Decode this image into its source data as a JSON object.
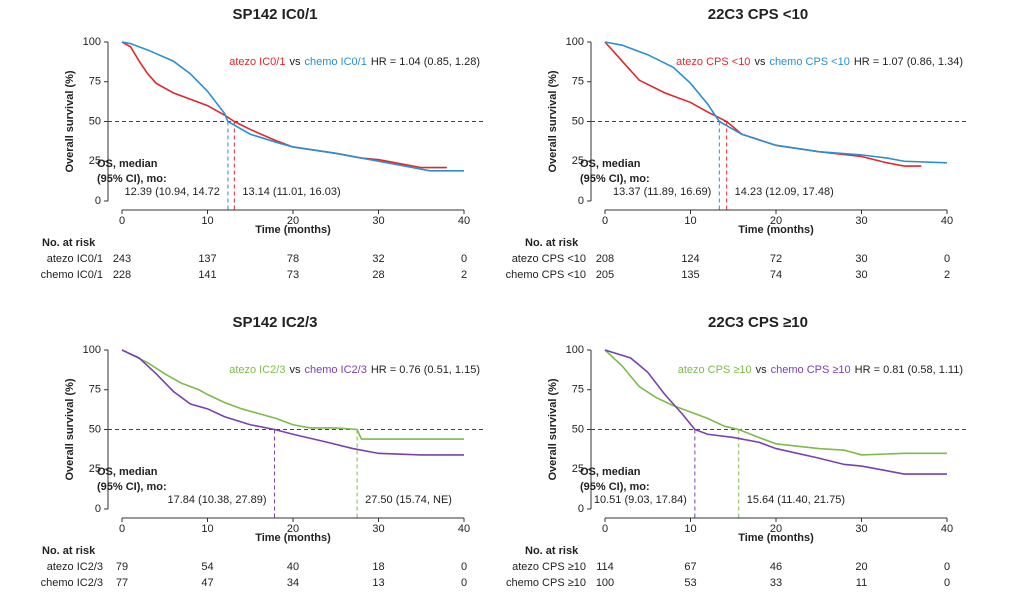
{
  "chart_data": [
    {
      "type": "line",
      "title": "SP142 IC0/1",
      "xlabel": "Time (months)",
      "ylabel": "Overall survival (%)",
      "xlim": [
        0,
        40
      ],
      "ylim": [
        0,
        100
      ],
      "xticks": [
        0,
        10,
        20,
        30,
        40
      ],
      "yticks": [
        0,
        25,
        50,
        75,
        100
      ],
      "hline": 50,
      "vs": "vs",
      "hr": "HR = 1.04 (0.85, 1.28)",
      "median_heading": [
        "OS, median",
        "(95% CI), mo:"
      ],
      "risk_heading": "No. at risk",
      "series": [
        {
          "name": "atezo IC0/1",
          "color": "#e3262b",
          "x": [
            0,
            1,
            2,
            3,
            4,
            6,
            8,
            10,
            12,
            13.14,
            15,
            18,
            20,
            25,
            28,
            30,
            33,
            35,
            38
          ],
          "values": [
            100,
            97,
            88,
            80,
            74,
            68,
            64,
            60,
            54,
            50,
            45,
            38,
            34,
            30,
            27,
            26,
            23,
            21,
            21
          ],
          "median": 13.14,
          "median_label": "13.14 (11.01, 16.03)",
          "risk": [
            243,
            137,
            78,
            32,
            0
          ]
        },
        {
          "name": "chemo IC0/1",
          "color": "#2b8fd0",
          "x": [
            0,
            1,
            3,
            6,
            8,
            10,
            12,
            12.39,
            15,
            18,
            20,
            25,
            28,
            30,
            33,
            36,
            40
          ],
          "values": [
            100,
            99,
            95,
            88,
            80,
            69,
            55,
            50,
            42,
            37,
            34,
            30,
            27,
            25,
            22,
            19,
            19
          ],
          "median": 12.39,
          "median_label": "12.39 (10.94, 14.72",
          "risk": [
            228,
            141,
            73,
            28,
            2
          ]
        }
      ]
    },
    {
      "type": "line",
      "title": "22C3 CPS <10",
      "xlabel": "Time (months)",
      "ylabel": "Overall survival (%)",
      "xlim": [
        0,
        40
      ],
      "ylim": [
        0,
        100
      ],
      "xticks": [
        0,
        10,
        20,
        30,
        40
      ],
      "yticks": [
        0,
        25,
        50,
        75,
        100
      ],
      "hline": 50,
      "vs": "vs",
      "hr": "HR = 1.07 (0.86, 1.34)",
      "median_heading": [
        "OS, median",
        "(95% CI), mo:"
      ],
      "risk_heading": "No. at risk",
      "series": [
        {
          "name": "atezo CPS <10",
          "color": "#e3262b",
          "x": [
            0,
            2,
            4,
            7,
            10,
            12,
            14.23,
            16,
            20,
            25,
            30,
            33,
            35,
            37
          ],
          "values": [
            100,
            88,
            76,
            68,
            62,
            56,
            50,
            42,
            35,
            31,
            28,
            24,
            22,
            22
          ],
          "median": 14.23,
          "median_label": "14.23 (12.09, 17.48)",
          "risk": [
            208,
            124,
            72,
            30,
            0
          ]
        },
        {
          "name": "chemo CPS <10",
          "color": "#2b8fd0",
          "x": [
            0,
            2,
            5,
            8,
            10,
            12,
            13.37,
            16,
            20,
            25,
            30,
            33,
            35,
            40
          ],
          "values": [
            100,
            98,
            92,
            84,
            74,
            61,
            50,
            42,
            35,
            31,
            29,
            27,
            25,
            24
          ],
          "median": 13.37,
          "median_label": "13.37 (11.89, 16.69)",
          "risk": [
            205,
            135,
            74,
            30,
            2
          ]
        }
      ]
    },
    {
      "type": "line",
      "title": "SP142 IC2/3",
      "xlabel": "Time (months)",
      "ylabel": "Overall survival (%)",
      "xlim": [
        0,
        40
      ],
      "ylim": [
        0,
        100
      ],
      "xticks": [
        0,
        10,
        20,
        30,
        40
      ],
      "yticks": [
        0,
        25,
        50,
        75,
        100
      ],
      "hline": 50,
      "vs": "vs",
      "hr": "HR = 0.76 (0.51, 1.15)",
      "median_heading": [
        "OS, median",
        "(95% CI), mo:"
      ],
      "risk_heading": "No. at risk",
      "series": [
        {
          "name": "atezo IC2/3",
          "color": "#7dbb4a",
          "x": [
            0,
            3,
            5,
            7,
            9,
            10,
            12,
            14,
            16,
            18,
            20,
            22,
            25,
            27.5,
            28,
            30,
            35,
            40
          ],
          "values": [
            100,
            92,
            85,
            79,
            75,
            72,
            67,
            63,
            60,
            57,
            53,
            51,
            51,
            50,
            44,
            44,
            44,
            44
          ],
          "median": 27.5,
          "median_label": "27.50 (15.74, NE)",
          "risk": [
            79,
            54,
            40,
            18,
            0
          ]
        },
        {
          "name": "chemo IC2/3",
          "color": "#7a3fb0",
          "x": [
            0,
            2,
            4,
            6,
            8,
            10,
            12,
            15,
            17.84,
            20,
            24,
            27,
            30,
            35,
            40
          ],
          "values": [
            100,
            95,
            85,
            74,
            66,
            63,
            58,
            53,
            50,
            47,
            42,
            38,
            35,
            34,
            34
          ],
          "median": 17.84,
          "median_label": "17.84 (10.38, 27.89)",
          "risk": [
            77,
            47,
            34,
            13,
            0
          ]
        }
      ]
    },
    {
      "type": "line",
      "title": "22C3 CPS ≥10",
      "xlabel": "Time (months)",
      "ylabel": "Overall survival (%)",
      "xlim": [
        0,
        40
      ],
      "ylim": [
        0,
        100
      ],
      "xticks": [
        0,
        10,
        20,
        30,
        40
      ],
      "yticks": [
        0,
        25,
        50,
        75,
        100
      ],
      "hline": 50,
      "vs": "vs",
      "hr": "HR = 0.81 (0.58, 1.11)",
      "median_heading": [
        "OS, median",
        "(95% CI), mo:"
      ],
      "risk_heading": "No. at risk",
      "series": [
        {
          "name": "atezo CPS ≥10",
          "color": "#7dbb4a",
          "x": [
            0,
            2,
            4,
            6,
            8,
            10,
            12,
            14,
            15.64,
            18,
            20,
            25,
            28,
            30,
            35,
            40
          ],
          "values": [
            100,
            90,
            77,
            70,
            65,
            61,
            57,
            52,
            50,
            45,
            41,
            38,
            37,
            34,
            35,
            35
          ],
          "median": 15.64,
          "median_label": "15.64 (11.40, 21.75)",
          "risk": [
            114,
            67,
            46,
            20,
            0
          ]
        },
        {
          "name": "chemo CPS ≥10",
          "color": "#7a3fb0",
          "x": [
            0,
            3,
            5,
            7,
            9,
            10.51,
            12,
            15,
            18,
            20,
            25,
            28,
            30,
            33,
            35,
            40
          ],
          "values": [
            100,
            95,
            86,
            72,
            60,
            50,
            47,
            45,
            42,
            38,
            32,
            28,
            27,
            24,
            22,
            22
          ],
          "median": 10.51,
          "median_label": "10.51 (9.03, 17.84)",
          "risk": [
            100,
            53,
            33,
            11,
            0
          ]
        }
      ]
    }
  ]
}
